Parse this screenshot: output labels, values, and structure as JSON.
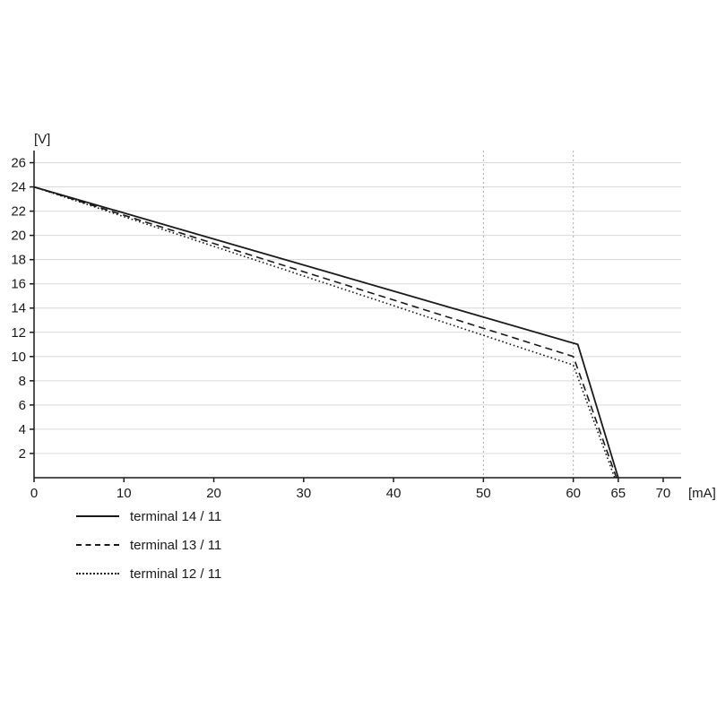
{
  "chart_data": {
    "type": "line",
    "title": "",
    "xlabel": "[mA]",
    "ylabel": "[V]",
    "xlim": [
      0,
      72
    ],
    "ylim": [
      0,
      27
    ],
    "x_ticks": [
      0,
      10,
      20,
      30,
      40,
      50,
      60,
      65,
      70
    ],
    "y_ticks": [
      2,
      4,
      6,
      8,
      10,
      12,
      14,
      16,
      18,
      20,
      22,
      24,
      26
    ],
    "x_gridlines_dotted": [
      50,
      60
    ],
    "grid": "horizontal-on",
    "legend_position": "below-left",
    "series": [
      {
        "name": "terminal 14 / 11",
        "style": "solid",
        "points": [
          [
            0,
            24
          ],
          [
            60.5,
            11
          ],
          [
            65,
            0
          ]
        ]
      },
      {
        "name": "terminal 13 / 11",
        "style": "dashed",
        "points": [
          [
            0,
            24
          ],
          [
            60,
            10
          ],
          [
            64.8,
            0
          ]
        ]
      },
      {
        "name": "terminal 12 / 11",
        "style": "dotted",
        "points": [
          [
            0,
            24
          ],
          [
            60,
            9.3
          ],
          [
            64.6,
            0
          ]
        ]
      }
    ],
    "colors": {
      "line": "#1a1a1a",
      "grid": "#d9d9d9",
      "grid_dotted": "#aaaaaa",
      "axis": "#1a1a1a",
      "text": "#1a1a1a"
    }
  }
}
